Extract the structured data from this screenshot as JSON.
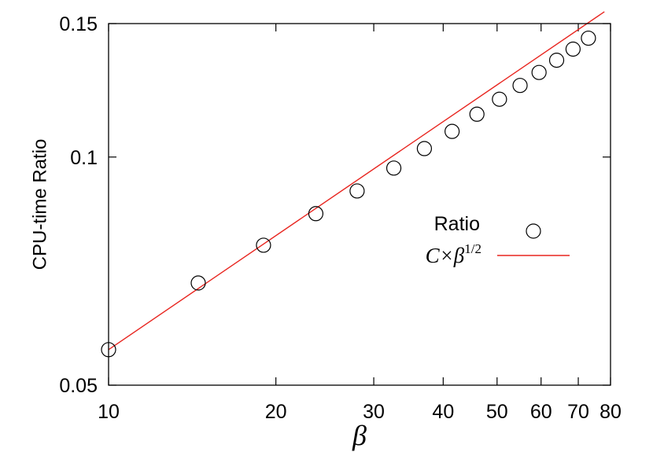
{
  "chart_data": {
    "type": "scatter",
    "xlabel": "β",
    "ylabel": "CPU-time Ratio",
    "x_scale": "log",
    "y_scale": "log",
    "xlim": [
      10,
      80
    ],
    "ylim": [
      0.05,
      0.15
    ],
    "x_ticks": [
      10,
      20,
      30,
      40,
      50,
      60,
      70,
      80
    ],
    "x_tick_labels": [
      "10",
      "20",
      "30",
      "40",
      "50",
      "60",
      "70",
      "80"
    ],
    "y_ticks": [
      0.05,
      0.1,
      0.15
    ],
    "y_tick_labels": [
      "0.05",
      "0.1",
      "0.15"
    ],
    "grid": false,
    "legend_position": "right",
    "series": [
      {
        "name": "Ratio",
        "kind": "markers",
        "marker": "open-circle",
        "color": "#000000",
        "x": [
          10,
          14.5,
          19,
          23.6,
          28,
          32.6,
          37,
          41.5,
          46,
          50.5,
          55,
          59.5,
          64,
          68.5,
          73
        ],
        "y": [
          0.0557,
          0.0682,
          0.0765,
          0.0842,
          0.0902,
          0.0967,
          0.1026,
          0.1081,
          0.1139,
          0.1192,
          0.1243,
          0.1293,
          0.1342,
          0.1388,
          0.1435
        ]
      },
      {
        "name_prefix": "C×β",
        "name_exponent": "1/2",
        "kind": "line",
        "color": "#e8251f",
        "x": [
          10,
          78
        ],
        "y": [
          0.0557,
          0.1555
        ]
      }
    ]
  }
}
